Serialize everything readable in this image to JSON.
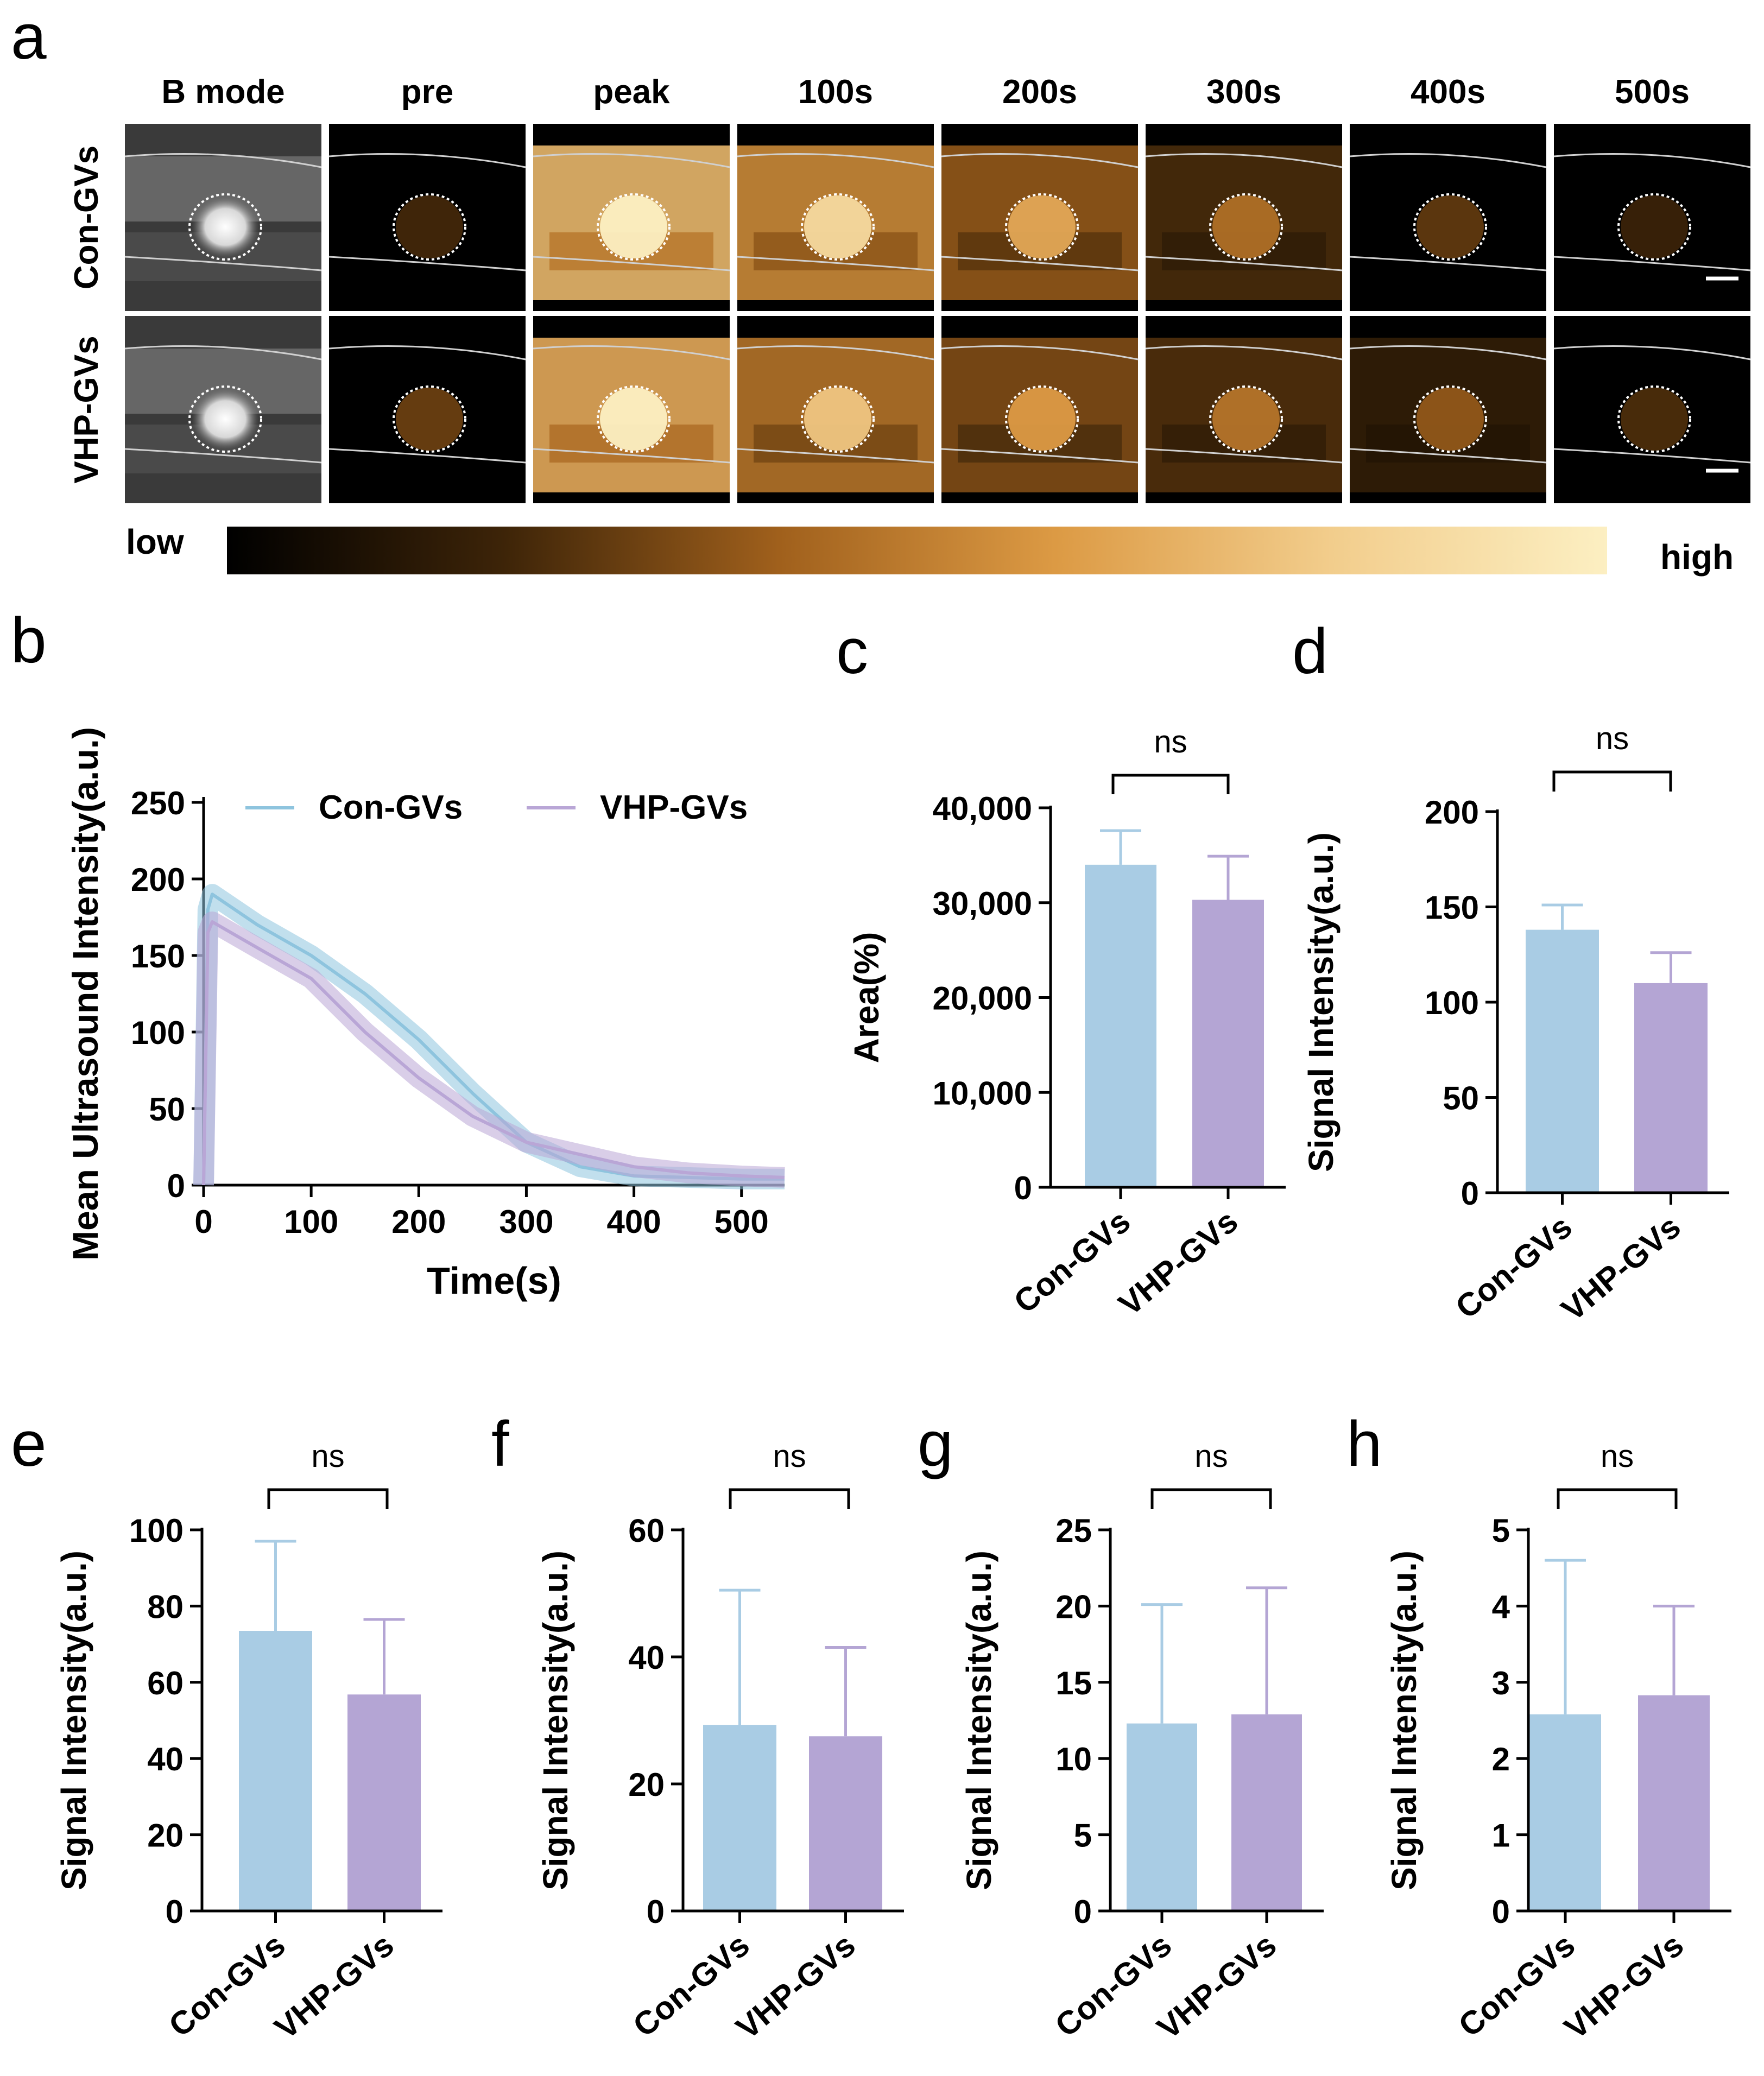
{
  "panel_letters": {
    "a": "a",
    "b": "b",
    "c": "c",
    "d": "d",
    "e": "e",
    "f": "f",
    "g": "g",
    "h": "h"
  },
  "colors": {
    "con": "#a9cce4",
    "vhp": "#b4a5d4",
    "con_line": "#8ec4de",
    "vhp_line": "#b9a6d6",
    "axis": "#000000"
  },
  "panel_a": {
    "columns": [
      "B mode",
      "pre",
      "peak",
      "100s",
      "200s",
      "300s",
      "400s",
      "500s"
    ],
    "rows": [
      "Con-GVs",
      "VHP-GVs"
    ],
    "intensity": [
      [
        0.0,
        0.06,
        0.95,
        0.72,
        0.5,
        0.3,
        0.12,
        0.04
      ],
      [
        0.0,
        0.14,
        0.88,
        0.62,
        0.45,
        0.32,
        0.22,
        0.08
      ]
    ],
    "colorbar_low": "low",
    "colorbar_high": "high",
    "colorbar_colors": [
      "#000000",
      "#3d2408",
      "#a0601c",
      "#dc9a44",
      "#f2cd8c",
      "#fcefc2"
    ]
  },
  "chart_data": [
    {
      "id": "b",
      "type": "line",
      "title": "",
      "xlabel": "Time(s)",
      "ylabel": "Mean Ultrasound Intensity(a.u.)",
      "xlim": [
        0,
        540
      ],
      "ylim": [
        0,
        250
      ],
      "xticks": [
        0,
        100,
        200,
        300,
        400,
        500
      ],
      "yticks": [
        0,
        50,
        100,
        150,
        200,
        250
      ],
      "legend_position": "top",
      "series": [
        {
          "name": "Con-GVs",
          "x": [
            0,
            4,
            8,
            50,
            100,
            150,
            200,
            250,
            300,
            350,
            400,
            450,
            500,
            540
          ],
          "y": [
            0,
            180,
            190,
            170,
            150,
            125,
            95,
            60,
            28,
            12,
            6,
            5,
            4,
            4
          ]
        },
        {
          "name": "VHP-GVs",
          "x": [
            0,
            4,
            8,
            50,
            100,
            150,
            200,
            250,
            300,
            350,
            400,
            450,
            500,
            540
          ],
          "y": [
            0,
            165,
            172,
            155,
            135,
            100,
            70,
            45,
            28,
            20,
            12,
            8,
            6,
            5
          ]
        }
      ]
    },
    {
      "id": "c",
      "type": "bar",
      "categories": [
        "Con-GVs",
        "VHP-GVs"
      ],
      "values": [
        34000,
        30300
      ],
      "errors": [
        3600,
        4600
      ],
      "ylabel": "Area(%)",
      "ylim": [
        0,
        40000
      ],
      "yticks": [
        0,
        10000,
        20000,
        30000,
        40000
      ],
      "ytick_labels": [
        "0",
        "10,000",
        "20,000",
        "30,000",
        "40,000"
      ],
      "significance": "ns"
    },
    {
      "id": "d",
      "type": "bar",
      "categories": [
        "Con-GVs",
        "VHP-GVs"
      ],
      "values": [
        138,
        110
      ],
      "errors": [
        13,
        16
      ],
      "ylabel": "Signal Intensity(a.u.)",
      "ylim": [
        0,
        200
      ],
      "yticks": [
        0,
        50,
        100,
        150,
        200
      ],
      "ytick_labels": [
        "0",
        "50",
        "100",
        "150",
        "200"
      ],
      "significance": "ns"
    },
    {
      "id": "e",
      "type": "bar",
      "categories": [
        "Con-GVs",
        "VHP-GVs"
      ],
      "values": [
        73.5,
        56.8
      ],
      "errors": [
        23.5,
        19.7
      ],
      "ylabel": "Signal Intensity(a.u.)",
      "ylim": [
        0,
        100
      ],
      "yticks": [
        0,
        20,
        40,
        60,
        80,
        100
      ],
      "ytick_labels": [
        "0",
        "20",
        "40",
        "60",
        "80",
        "100"
      ],
      "significance": "ns"
    },
    {
      "id": "f",
      "type": "bar",
      "categories": [
        "Con-GVs",
        "VHP-GVs"
      ],
      "values": [
        29.3,
        27.5
      ],
      "errors": [
        21.2,
        14
      ],
      "ylabel": "Signal Intensity(a.u.)",
      "ylim": [
        0,
        60
      ],
      "yticks": [
        0,
        20,
        40,
        60
      ],
      "ytick_labels": [
        "0",
        "20",
        "40",
        "60"
      ],
      "significance": "ns"
    },
    {
      "id": "g",
      "type": "bar",
      "categories": [
        "Con-GVs",
        "VHP-GVs"
      ],
      "values": [
        12.3,
        12.9
      ],
      "errors": [
        7.8,
        8.3
      ],
      "ylabel": "Signal Intensity(a.u.)",
      "ylim": [
        0,
        25
      ],
      "yticks": [
        0,
        5,
        10,
        15,
        20,
        25
      ],
      "ytick_labels": [
        "0",
        "5",
        "10",
        "15",
        "20",
        "25"
      ],
      "significance": "ns"
    },
    {
      "id": "h",
      "type": "bar",
      "categories": [
        "Con-GVs",
        "VHP-GVs"
      ],
      "values": [
        2.58,
        2.83
      ],
      "errors": [
        2.02,
        1.17
      ],
      "ylabel": "Signal Intensity(a.u.)",
      "ylim": [
        0,
        5
      ],
      "yticks": [
        0,
        1,
        2,
        3,
        4,
        5
      ],
      "ytick_labels": [
        "0",
        "1",
        "2",
        "3",
        "4",
        "5"
      ],
      "significance": "ns"
    }
  ]
}
